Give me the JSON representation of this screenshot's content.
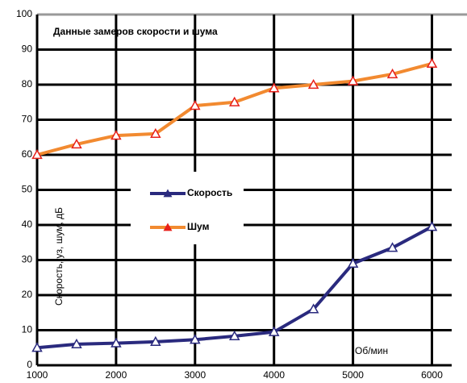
{
  "chart_data": {
    "type": "line",
    "title": "Данные замеров скорости и шума",
    "ylabel": "Скорость, уз, шум, дБ",
    "xlabel": "Об/мин",
    "x": [
      1000,
      1500,
      2000,
      2500,
      3000,
      3500,
      4000,
      4500,
      5000,
      5500,
      6000
    ],
    "series": [
      {
        "name": "Скорость",
        "color": "#2a2a7e",
        "marker_color": "#2a2a7e",
        "values": [
          5,
          6,
          6.3,
          6.7,
          7.3,
          8.3,
          9.5,
          16,
          29,
          33.5,
          39.5
        ]
      },
      {
        "name": "Шум",
        "color": "#f28a30",
        "marker_color": "#e8201a",
        "values": [
          60,
          63,
          65.5,
          66,
          74,
          75,
          79,
          80,
          81,
          83,
          86
        ]
      }
    ],
    "xlim": [
      1000,
      6250
    ],
    "xticks": [
      1000,
      2000,
      3000,
      4000,
      5000,
      6000
    ],
    "ylim": [
      0,
      100
    ],
    "yticks": [
      0,
      10,
      20,
      30,
      40,
      50,
      60,
      70,
      80,
      90,
      100
    ],
    "grid": true
  }
}
